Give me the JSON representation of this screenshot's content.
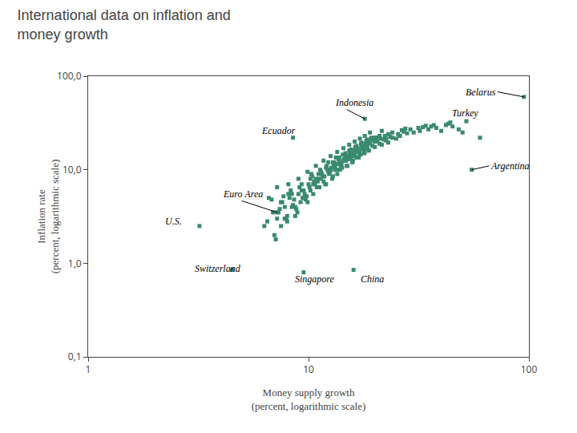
{
  "chart_data": {
    "type": "scatter",
    "title": "International data on inflation and\nmoney growth",
    "xlabel": "Money supply growth\n(percent, logarithmic scale)",
    "ylabel": "Inflation rate\n(percent, logarithmic scale)",
    "color": "#3a8a6e",
    "marker": "square",
    "log": true,
    "grid": false,
    "xlim": [
      1,
      100
    ],
    "ylim": [
      0.1,
      100
    ],
    "xticks": [
      1,
      10,
      100
    ],
    "yticks": [
      {
        "value": 0.1,
        "label": "0,1"
      },
      {
        "value": 1.0,
        "label": "1,0"
      },
      {
        "value": 10.0,
        "label": "10,0"
      },
      {
        "value": 100.0,
        "label": "100,0"
      }
    ],
    "x": [
      7.2,
      7.5,
      7.8,
      8.0,
      8.2,
      8.5,
      8.8,
      9.0,
      9.2,
      9.5,
      9.8,
      10.0,
      10.2,
      10.5,
      10.8,
      11.0,
      11.2,
      11.5,
      11.8,
      12.0,
      12.2,
      12.5,
      12.8,
      13.0,
      13.2,
      13.5,
      13.8,
      14.0,
      14.2,
      14.5,
      14.8,
      15.0,
      15.2,
      15.5,
      15.8,
      16.0,
      16.2,
      16.5,
      16.8,
      17.0,
      17.2,
      17.5,
      17.8,
      18.0,
      18.2,
      18.5,
      18.8,
      19.0,
      19.5,
      20.0,
      20.5,
      21.0,
      21.5,
      22.0,
      22.5,
      23.0,
      24.0,
      25.0,
      26.0,
      28.0,
      30.0,
      32.0,
      35.0,
      38.0,
      40.0,
      45.0,
      7.0,
      7.3,
      7.6,
      7.9,
      8.1,
      8.4,
      8.7,
      9.1,
      9.4,
      9.7,
      10.1,
      10.4,
      10.7,
      11.1,
      11.4,
      11.7,
      12.1,
      12.4,
      12.7,
      13.1,
      13.4,
      13.7,
      14.1,
      14.4,
      14.7,
      15.1,
      15.4,
      15.7,
      16.1,
      16.4,
      16.7,
      17.1,
      17.4,
      17.7,
      18.1,
      18.4,
      18.7,
      19.2,
      19.8,
      20.3,
      21.2,
      22.2,
      23.5,
      25.5,
      27.0,
      29.0,
      31.5,
      36.0,
      42.0,
      48.0,
      6.5,
      6.8,
      7.1,
      7.4,
      7.7,
      8.0,
      8.3,
      8.6,
      8.9,
      9.3,
      9.6,
      9.9,
      10.3,
      10.6,
      10.9,
      11.3,
      11.6,
      11.9,
      12.3,
      12.6,
      12.9,
      13.3,
      13.6,
      13.9,
      14.3,
      14.6,
      14.9,
      15.3,
      15.6,
      15.9,
      16.3,
      16.6,
      16.9,
      17.3,
      17.6,
      17.9,
      18.3,
      18.6,
      19.3,
      20.0,
      21.0,
      22.5,
      24.0,
      26.5,
      33.0,
      37.0,
      43.0,
      50.0,
      60.0,
      6.3,
      6.6,
      6.9,
      7.2,
      7.5,
      7.8,
      8.1,
      8.4,
      8.7,
      9.0,
      9.3,
      9.6,
      9.9,
      10.2,
      10.5,
      10.8,
      11.1,
      11.4,
      11.7,
      12.0,
      12.3,
      12.6,
      12.9,
      13.2,
      13.5,
      13.8,
      14.1,
      14.4,
      14.7,
      15.0,
      15.3,
      15.6,
      15.9,
      16.2,
      16.5,
      16.8,
      17.1,
      17.4,
      17.7,
      18.0,
      18.5,
      19.0,
      20.0,
      21.5,
      23.0,
      27.5,
      34.0,
      44.0
    ],
    "values": [
      3.0,
      2.5,
      4.0,
      3.2,
      5.0,
      4.2,
      3.8,
      5.5,
      4.5,
      6.0,
      5.2,
      7.0,
      6.0,
      5.5,
      8.0,
      7.5,
      6.5,
      9.0,
      8.5,
      7.0,
      10.0,
      9.5,
      8.0,
      11.0,
      10.0,
      9.0,
      12.0,
      11.0,
      10.5,
      13.0,
      12.5,
      11.0,
      14.0,
      13.0,
      12.0,
      15.0,
      14.0,
      13.5,
      16.0,
      15.0,
      14.5,
      17.0,
      16.5,
      15.5,
      18.0,
      17.0,
      16.0,
      19.0,
      18.0,
      17.5,
      20.0,
      19.0,
      18.5,
      21.0,
      20.5,
      19.5,
      22.0,
      21.5,
      23.0,
      24.5,
      25.0,
      26.0,
      27.0,
      28.0,
      26.0,
      29.0,
      2.0,
      3.5,
      4.5,
      3.0,
      5.5,
      4.0,
      3.2,
      6.5,
      5.0,
      4.8,
      6.5,
      8.5,
      7.0,
      8.0,
      9.5,
      7.5,
      11.0,
      9.0,
      10.5,
      12.0,
      10.0,
      13.0,
      11.5,
      12.5,
      14.0,
      13.0,
      15.0,
      14.0,
      16.0,
      15.5,
      17.0,
      16.0,
      18.0,
      17.5,
      19.0,
      18.5,
      20.0,
      21.0,
      20.5,
      22.0,
      21.5,
      23.0,
      22.5,
      24.0,
      25.5,
      27.0,
      28.0,
      29.0,
      30.0,
      27.0,
      2.8,
      4.8,
      1.8,
      3.8,
      5.2,
      2.8,
      6.0,
      4.8,
      3.5,
      7.0,
      5.5,
      4.5,
      9.0,
      7.5,
      6.5,
      10.0,
      8.5,
      7.0,
      12.0,
      10.0,
      8.5,
      13.5,
      11.5,
      10.0,
      14.5,
      12.5,
      11.0,
      16.0,
      14.0,
      12.5,
      17.5,
      15.5,
      13.5,
      19.0,
      17.0,
      15.0,
      20.5,
      19.5,
      22.0,
      20.0,
      23.0,
      21.5,
      25.0,
      26.5,
      28.5,
      30.0,
      31.0,
      25.0,
      22.0,
      2.5,
      5.0,
      3.5,
      6.5,
      4.5,
      3.0,
      7.0,
      5.5,
      4.0,
      8.0,
      6.0,
      5.0,
      9.5,
      8.0,
      7.0,
      11.0,
      9.0,
      8.0,
      12.5,
      10.5,
      9.5,
      14.0,
      12.0,
      11.0,
      15.5,
      13.5,
      12.0,
      17.0,
      15.0,
      13.0,
      18.5,
      16.5,
      14.5,
      20.0,
      18.0,
      16.0,
      21.5,
      19.5,
      17.5,
      23.0,
      21.0,
      25.0,
      22.0,
      26.0,
      24.0,
      27.5,
      29.5,
      32.0
    ],
    "annotations": [
      {
        "text": "Belarus",
        "x": 95,
        "y": 60,
        "label_x": 72,
        "label_y": 68,
        "arrow": true,
        "align": "right"
      },
      {
        "text": "Indonesia",
        "x": 18,
        "y": 35,
        "label_x": 13,
        "label_y": 52,
        "arrow": true,
        "align": "left"
      },
      {
        "text": "Turkey",
        "x": 52,
        "y": 33,
        "label_x": 44,
        "label_y": 40,
        "arrow": false,
        "align": "left"
      },
      {
        "text": "Ecuador",
        "x": 8.5,
        "y": 22,
        "label_x": 6.0,
        "label_y": 26,
        "arrow": false,
        "align": "left"
      },
      {
        "text": "Euro Area",
        "x": 7.2,
        "y": 3.5,
        "label_x": 4.0,
        "label_y": 5.5,
        "arrow": true,
        "align": "left"
      },
      {
        "text": "U.S.",
        "x": 3.2,
        "y": 2.5,
        "label_x": 2.2,
        "label_y": 2.8,
        "arrow": false,
        "align": "left"
      },
      {
        "text": "Argentina",
        "x": 55,
        "y": 10,
        "label_x": 66,
        "label_y": 11,
        "arrow": true,
        "align": "left"
      },
      {
        "text": "Switzerland",
        "x": 4.5,
        "y": 0.85,
        "label_x": 3.0,
        "label_y": 0.88,
        "arrow": false,
        "align": "left"
      },
      {
        "text": "Singapore",
        "x": 9.5,
        "y": 0.8,
        "label_x": 8.5,
        "label_y": 0.68,
        "arrow": false,
        "align": "left"
      },
      {
        "text": "China",
        "x": 16,
        "y": 0.85,
        "label_x": 17,
        "label_y": 0.68,
        "arrow": false,
        "align": "left"
      }
    ]
  }
}
